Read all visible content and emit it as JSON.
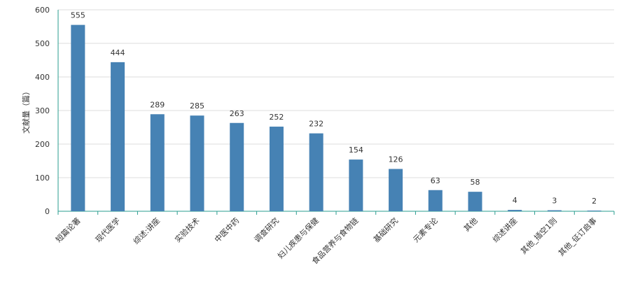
{
  "chart_data": {
    "type": "bar",
    "y_label": "文献量（篇）",
    "categories": [
      "短篇论著",
      "现代医学",
      "综述:讲座",
      "实验技术",
      "中医中药",
      "调查研究",
      "妇儿疾患与保健",
      "食品营养与食物链",
      "基础研究",
      "元素专论",
      "其他",
      "综述讲座",
      "其他_插空1则",
      "其他_征订启事"
    ],
    "values": [
      555,
      444,
      289,
      285,
      263,
      252,
      232,
      154,
      126,
      63,
      58,
      4,
      3,
      2
    ],
    "color": "#4682b4",
    "ylim": [
      0,
      600
    ],
    "yticks": [
      0,
      100,
      200,
      300,
      400,
      500,
      600
    ],
    "grid": true
  }
}
